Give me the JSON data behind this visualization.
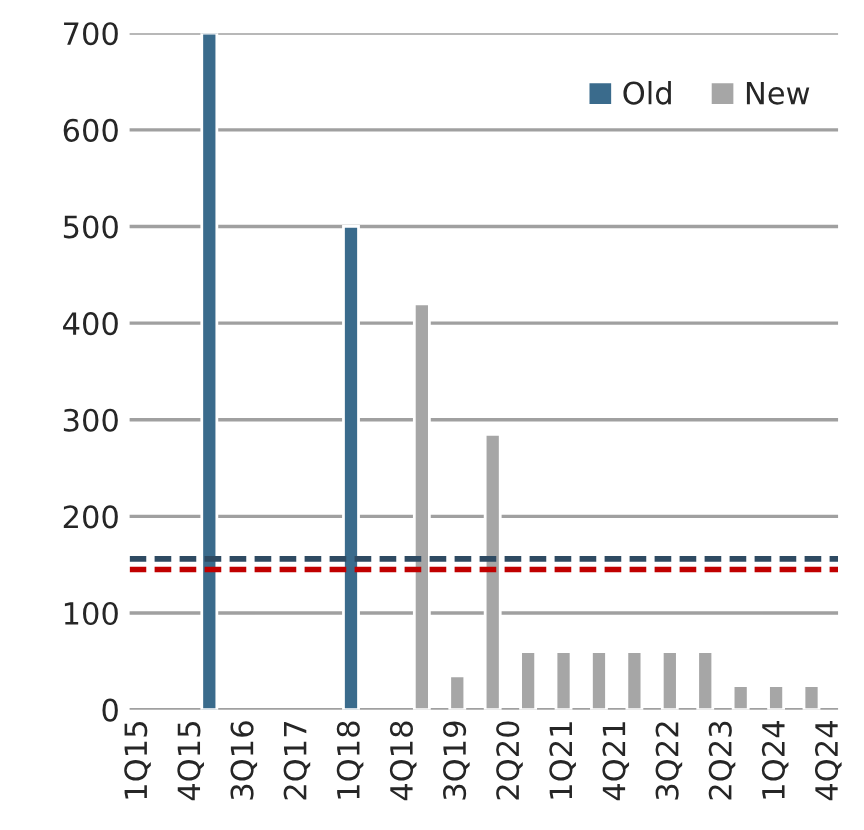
{
  "chart_data": {
    "type": "bar",
    "categories": [
      "1Q15",
      null,
      null,
      "4Q15",
      null,
      null,
      "3Q16",
      null,
      null,
      "2Q17",
      null,
      null,
      "1Q18",
      null,
      null,
      "4Q18",
      null,
      null,
      "3Q19",
      null,
      null,
      "2Q20",
      null,
      null,
      "1Q21",
      null,
      null,
      "4Q21",
      null,
      null,
      "3Q22",
      null,
      null,
      "2Q23",
      null,
      null,
      "1Q24",
      null,
      null,
      "4Q24"
    ],
    "series": [
      {
        "name": "Old",
        "color": "#3a6b8c",
        "values": [
          null,
          null,
          null,
          null,
          700,
          null,
          null,
          null,
          null,
          null,
          null,
          null,
          500,
          null,
          null,
          null,
          null,
          null,
          null,
          null,
          null,
          null,
          null,
          null,
          null,
          null,
          null,
          null,
          null,
          null,
          null,
          null,
          null,
          null,
          null,
          null,
          null,
          null,
          null,
          null
        ]
      },
      {
        "name": "New",
        "color": "#a6a6a6",
        "values": [
          null,
          null,
          null,
          null,
          null,
          null,
          null,
          null,
          null,
          null,
          null,
          null,
          null,
          null,
          null,
          null,
          420,
          null,
          35,
          null,
          285,
          null,
          60,
          null,
          60,
          null,
          60,
          null,
          60,
          null,
          60,
          null,
          60,
          null,
          25,
          null,
          25,
          null,
          25,
          null
        ]
      }
    ],
    "ylim": [
      0,
      700
    ],
    "yticks": [
      0,
      100,
      200,
      300,
      400,
      500,
      600,
      700
    ],
    "grid": "y",
    "legend": "top right",
    "ref_lines": [
      {
        "axis": "y",
        "value": 156,
        "color": "#2e4a62",
        "line_style": "dashed"
      },
      {
        "axis": "y",
        "value": 145,
        "color": "#c00000",
        "line_style": "dashed"
      }
    ]
  }
}
